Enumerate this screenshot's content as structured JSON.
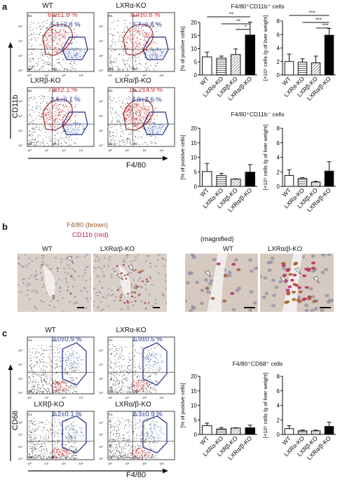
{
  "figure": {
    "panel_a": {
      "label": "a",
      "y_axis_label": "CD11b",
      "x_axis_label": "F4/80",
      "flow_plots": [
        {
          "genotype": "WT",
          "top_value": "6.9±1.8 %",
          "bottom_value": "5.1±2.8 %"
        },
        {
          "genotype": "LXRα-KO",
          "top_value": "6.4±0.8 %",
          "bottom_value": "3.7±0.8 %"
        },
        {
          "genotype": "LXRβ-KO",
          "top_value": "7.8±2.1 %",
          "bottom_value": "2.5±0.1 %"
        },
        {
          "genotype": "LXRα/β-KO",
          "top_value": "15.2±4.9 %",
          "bottom_value": "4.9±2.6 %"
        }
      ],
      "gate_labels": [
        "B1",
        "B2",
        "B3",
        "B4",
        "L"
      ]
    },
    "panel_b": {
      "label": "b",
      "stain_1": "F4/80 (brown)",
      "stain_2": "CD11b (red)",
      "magnified_label": "(magnified)",
      "image_labels": [
        "WT",
        "LXRα/β-KO",
        "WT",
        "LXRα/β-KO"
      ]
    },
    "panel_c": {
      "label": "c",
      "y_axis_label": "CD68",
      "x_axis_label": "F4/80",
      "flow_plots": [
        {
          "genotype": "WT",
          "value": "3.0±0.9 %"
        },
        {
          "genotype": "LXRα-KO",
          "value": "1.9±0.5 %"
        },
        {
          "genotype": "LXRβ-KO",
          "value": "2.2±0.1 %"
        },
        {
          "genotype": "LXRα/β-KO",
          "value": "2.3±0.9 %"
        }
      ],
      "gate_labels": [
        "C1",
        "C2",
        "C3",
        "C4"
      ]
    },
    "colors": {
      "red_text": "#d42a2a",
      "blue_text": "#2a3a9c"
    }
  },
  "chart_data": [
    {
      "id": "a_cd11bpos_pct",
      "type": "bar",
      "title": "F4/80⁺CD11b⁺ cells",
      "categories": [
        "WT",
        "LXRα-KO",
        "LXRβ-KO",
        "LXRα/β-KO"
      ],
      "values": [
        6.9,
        6.4,
        7.8,
        15.2
      ],
      "errors": [
        1.8,
        0.8,
        2.1,
        4.9
      ],
      "ylabel": "[% of positive cells]",
      "ylim": [
        0,
        20
      ],
      "yticks": [
        "0",
        "5",
        "10",
        "15",
        "20"
      ],
      "significance": [
        "**",
        "**",
        "*"
      ]
    },
    {
      "id": "a_cd11bpos_num",
      "type": "bar",
      "categories": [
        "WT",
        "LXRα-KO",
        "LXRβ-KO",
        "LXRα/β-KO"
      ],
      "values": [
        2.0,
        1.9,
        1.8,
        5.9
      ],
      "errors": [
        1.1,
        0.5,
        1.0,
        1.0
      ],
      "ylabel": "[×10⁵ cells /g of liver weight]",
      "ylim": [
        0,
        8
      ],
      "yticks": [
        "0",
        "2",
        "4",
        "6",
        "8"
      ],
      "significance": [
        "***",
        "***",
        "***"
      ]
    },
    {
      "id": "a_cd11bneg_pct",
      "type": "bar",
      "title": "F4/80⁺CD11b⁻ cells",
      "categories": [
        "WT",
        "LXRα-KO",
        "LXRβ-KO",
        "LXRα/β-KO"
      ],
      "values": [
        5.1,
        3.7,
        2.5,
        4.9
      ],
      "errors": [
        2.8,
        0.8,
        0.1,
        2.6
      ],
      "ylabel": "[% of positive cells]",
      "ylim": [
        0,
        20
      ],
      "yticks": [
        "0",
        "5",
        "10",
        "15",
        "20"
      ]
    },
    {
      "id": "a_cd11bneg_num",
      "type": "bar",
      "categories": [
        "WT",
        "LXRα-KO",
        "LXRβ-KO",
        "LXRα/β-KO"
      ],
      "values": [
        1.5,
        1.1,
        0.6,
        2.1
      ],
      "errors": [
        0.8,
        0.1,
        0.1,
        1.3
      ],
      "ylabel": "[×10⁵ cells /g of liver weight]",
      "ylim": [
        0,
        8
      ],
      "yticks": [
        "0",
        "2",
        "4",
        "6",
        "8"
      ]
    },
    {
      "id": "c_cd68_pct",
      "type": "bar",
      "title": "F4/80⁺CD68⁺ cells",
      "categories": [
        "WT",
        "LXRα-KO",
        "LXRβ-KO",
        "LXRα/β-KO"
      ],
      "values": [
        3.0,
        1.9,
        2.2,
        2.3
      ],
      "errors": [
        0.9,
        0.5,
        0.1,
        0.9
      ],
      "ylabel": "[% of positive cells]",
      "ylim": [
        0,
        20
      ],
      "yticks": [
        "0",
        "5",
        "10",
        "15",
        "20"
      ]
    },
    {
      "id": "c_cd68_num",
      "type": "bar",
      "categories": [
        "WT",
        "LXRα-KO",
        "LXRβ-KO",
        "LXRα/β-KO"
      ],
      "values": [
        0.8,
        0.5,
        0.5,
        1.1
      ],
      "errors": [
        0.4,
        0.1,
        0.1,
        0.6
      ],
      "ylabel": "[×10⁵ cells /g of liver weight]",
      "ylim": [
        0,
        8
      ],
      "yticks": [
        "0",
        "2",
        "4",
        "6",
        "8"
      ]
    }
  ]
}
